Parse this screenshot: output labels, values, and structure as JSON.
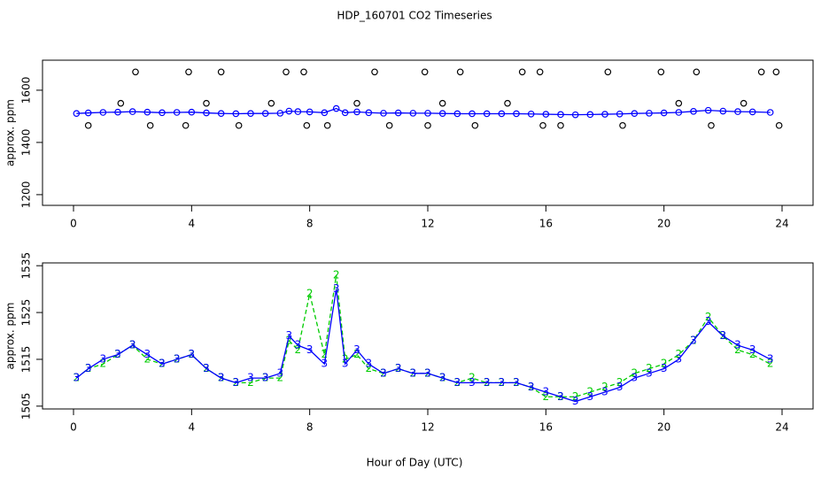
{
  "chart_data": [
    {
      "type": "line",
      "title": "HDP_160701  CO2 Timeseries",
      "ylabel": "approx. ppm",
      "xlim": [
        -1.05,
        25.05
      ],
      "ylim": [
        1159,
        1715
      ],
      "xticks": [
        0,
        4,
        8,
        12,
        16,
        20,
        24
      ],
      "yticks": [
        1200,
        1400,
        1600
      ],
      "x": [
        0.1,
        0.5,
        1,
        1.5,
        2,
        2.5,
        3,
        3.5,
        4,
        4.5,
        5,
        5.5,
        6,
        6.5,
        7,
        7.3,
        7.6,
        8,
        8.5,
        8.9,
        9.2,
        9.6,
        10,
        10.5,
        11,
        11.5,
        12,
        12.5,
        13,
        13.5,
        14,
        14.5,
        15,
        15.5,
        16,
        16.5,
        17,
        17.5,
        18,
        18.5,
        19,
        19.5,
        20,
        20.5,
        21,
        21.5,
        22,
        22.5,
        23,
        23.6
      ],
      "series": [
        {
          "color": "#0000ff",
          "marker": "circle",
          "line": true,
          "values": [
            1511,
            1513,
            1515,
            1516,
            1518,
            1516,
            1514,
            1515,
            1516,
            1513,
            1511,
            1510,
            1511,
            1511,
            1512,
            1520,
            1518,
            1517,
            1514,
            1530,
            1514,
            1517,
            1514,
            1512,
            1513,
            1512,
            1512,
            1511,
            1510,
            1510,
            1510,
            1510,
            1510,
            1509,
            1508,
            1507,
            1506,
            1507,
            1508,
            1509,
            1511,
            1512,
            1513,
            1515,
            1519,
            1523,
            1520,
            1518,
            1517,
            1515
          ]
        },
        {
          "color": "#000000",
          "marker": "circle",
          "line": false,
          "x": [
            0.5,
            1.6,
            2.1,
            2.6,
            3.8,
            3.9,
            4.5,
            5.0,
            5.6,
            6.7,
            7.2,
            7.8,
            7.9,
            8.6,
            9.6,
            10.2,
            10.7,
            11.9,
            12.0,
            12.5,
            13.1,
            13.6,
            14.7,
            15.2,
            15.8,
            15.9,
            16.5,
            18.1,
            18.6,
            19.9,
            20.5,
            21.1,
            21.6,
            22.7,
            23.3,
            23.8,
            23.9
          ],
          "values": [
            1465,
            1550,
            1670,
            1465,
            1465,
            1670,
            1550,
            1670,
            1465,
            1550,
            1670,
            1670,
            1465,
            1465,
            1550,
            1670,
            1465,
            1670,
            1465,
            1550,
            1670,
            1465,
            1550,
            1670,
            1670,
            1465,
            1465,
            1670,
            1465,
            1670,
            1550,
            1670,
            1465,
            1550,
            1670,
            1670,
            1465
          ]
        }
      ]
    },
    {
      "type": "line",
      "ylabel": "approx. ppm",
      "xlabel": "Hour of Day (UTC)",
      "xlim": [
        -1.05,
        25.05
      ],
      "ylim": [
        1504.4,
        1535.6
      ],
      "xticks": [
        0,
        4,
        8,
        12,
        16,
        20,
        24
      ],
      "yticks": [
        1505,
        1515,
        1525,
        1535
      ],
      "x": [
        0.1,
        0.5,
        1,
        1.5,
        2,
        2.5,
        3,
        3.5,
        4,
        4.5,
        5,
        5.5,
        6,
        6.5,
        7,
        7.3,
        7.6,
        8,
        8.5,
        8.9,
        9.2,
        9.6,
        10,
        10.5,
        11,
        11.5,
        12,
        12.5,
        13,
        13.5,
        14,
        14.5,
        15,
        15.5,
        16,
        16.5,
        17,
        17.5,
        18,
        18.5,
        19,
        19.5,
        20,
        20.5,
        21,
        21.5,
        22,
        22.5,
        23,
        23.6
      ],
      "series": [
        {
          "color": "#00cc00",
          "marker": "2",
          "line": true,
          "dash": true,
          "values": [
            1511,
            1513,
            1514,
            1516,
            1518,
            1515,
            1514,
            1515,
            1516,
            1513,
            1511,
            1510,
            1510,
            1511,
            1511,
            1519,
            1517,
            1529,
            1516,
            1533,
            1515,
            1516,
            1513,
            1512,
            1513,
            1512,
            1512,
            1511,
            1510,
            1511,
            1510,
            1510,
            1510,
            1509,
            1507,
            1507,
            1507,
            1508,
            1509,
            1510,
            1512,
            1513,
            1514,
            1516,
            1519,
            1524,
            1520,
            1517,
            1516,
            1514
          ]
        },
        {
          "color": "#0000ff",
          "marker": "3",
          "line": true,
          "values": [
            1511,
            1513,
            1515,
            1516,
            1518,
            1516,
            1514,
            1515,
            1516,
            1513,
            1511,
            1510,
            1511,
            1511,
            1512,
            1520,
            1518,
            1517,
            1514,
            1530,
            1514,
            1517,
            1514,
            1512,
            1513,
            1512,
            1512,
            1511,
            1510,
            1510,
            1510,
            1510,
            1510,
            1509,
            1508,
            1507,
            1506,
            1507,
            1508,
            1509,
            1511,
            1512,
            1513,
            1515,
            1519,
            1523,
            1520,
            1518,
            1517,
            1515
          ]
        }
      ]
    }
  ]
}
